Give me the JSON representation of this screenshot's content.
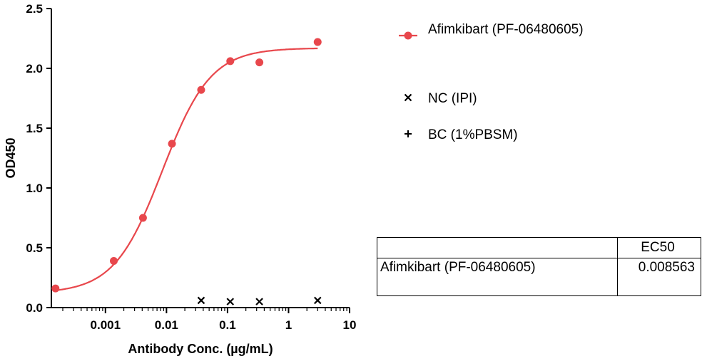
{
  "chart_data": {
    "type": "scatter",
    "xscale": "log",
    "xlabel": "Antibody Conc. (µg/mL)",
    "ylabel": "OD450",
    "xlim": [
      0.00013,
      10
    ],
    "ylim": [
      0,
      2.5
    ],
    "xticks": [
      0.001,
      0.01,
      0.1,
      1,
      10
    ],
    "xtick_labels": [
      "0.001",
      "0.01",
      "0.1",
      "1",
      "10"
    ],
    "yticks": [
      0,
      0.5,
      1.0,
      1.5,
      2.0,
      2.5
    ],
    "ytick_labels": [
      "0.0",
      "0.5",
      "1.0",
      "1.5",
      "2.0",
      "2.5"
    ],
    "legend_position": "right",
    "series": [
      {
        "name": "Afimkibart (PF-06480605)",
        "marker": "circle",
        "color": "#e8474c",
        "fit_curve": true,
        "x": [
          0.000152,
          0.00137,
          0.00412,
          0.0123,
          0.037,
          0.111,
          0.333,
          3
        ],
        "y": [
          0.16,
          0.39,
          0.75,
          1.37,
          1.82,
          2.06,
          2.05,
          2.22
        ]
      },
      {
        "name": "NC (IPI)",
        "marker": "x",
        "color": "#000000",
        "x": [
          0.037,
          0.111,
          0.333,
          3
        ],
        "y": [
          0.06,
          0.05,
          0.05,
          0.06
        ]
      },
      {
        "name": "BC (1%PBSM)",
        "marker": "plus",
        "color": "#000000",
        "x": [],
        "y": []
      }
    ],
    "fit": {
      "bottom": 0.12,
      "top": 2.17,
      "ec50": 0.008563,
      "hill": 1.1
    }
  },
  "table": {
    "header": [
      "",
      "EC50"
    ],
    "rows": [
      [
        "Afimkibart (PF-06480605)",
        "0.008563"
      ]
    ]
  }
}
